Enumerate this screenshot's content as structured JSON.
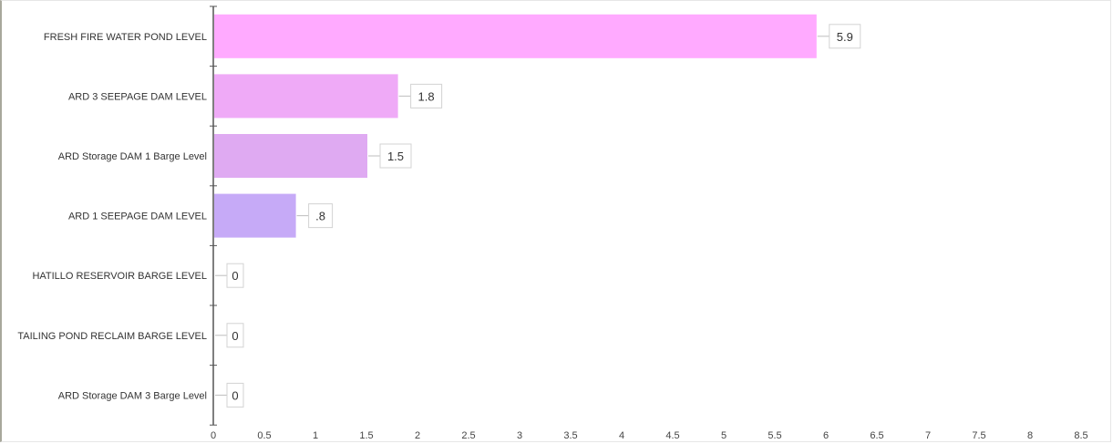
{
  "chart_data": {
    "type": "bar",
    "orientation": "horizontal",
    "title": "",
    "xlabel": "",
    "ylabel": "",
    "categories": [
      "FRESH FIRE WATER POND LEVEL",
      "ARD 3 SEEPAGE DAM LEVEL",
      "ARD Storage DAM 1 Barge Level",
      "ARD 1 SEEPAGE DAM LEVEL",
      "HATILLO RESERVOIR BARGE LEVEL",
      "TAILING POND RECLAIM BARGE LEVEL",
      "ARD Storage DAM 3 Barge Level"
    ],
    "values": [
      5.9,
      1.8,
      1.5,
      0.8,
      0,
      0,
      0
    ],
    "value_labels": [
      "5.9",
      "1.8",
      "1.5",
      ".8",
      "0",
      "0",
      "0"
    ],
    "bar_colors": [
      "#ffaaff",
      "#efaaf7",
      "#dfaaf2",
      "#c6aaf7",
      "#b4aaff",
      "#b4aaff",
      "#b4aaff"
    ],
    "xlim": [
      0,
      8.5
    ],
    "x_ticks": [
      "0",
      "0.5",
      "1",
      "1.5",
      "2",
      "2.5",
      "3",
      "3.5",
      "4",
      "4.5",
      "5",
      "5.5",
      "6",
      "6.5",
      "7",
      "7.5",
      "8",
      "8.5"
    ],
    "grid": false,
    "legend": "none"
  }
}
